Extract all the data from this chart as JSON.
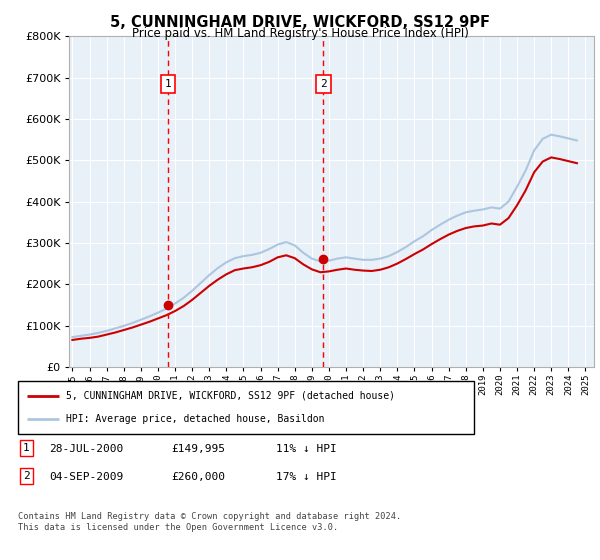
{
  "title": "5, CUNNINGHAM DRIVE, WICKFORD, SS12 9PF",
  "subtitle": "Price paid vs. HM Land Registry's House Price Index (HPI)",
  "ylim": [
    0,
    800000
  ],
  "yticks": [
    0,
    100000,
    200000,
    300000,
    400000,
    500000,
    600000,
    700000,
    800000
  ],
  "hpi_color": "#adc6e0",
  "price_color": "#cc0000",
  "bg_color": "#e8f0f8",
  "grid_color": "#ffffff",
  "purchase1_year": 2000.58,
  "purchase1_price": 149995,
  "purchase2_year": 2009.67,
  "purchase2_price": 260000,
  "legend_label1": "5, CUNNINGHAM DRIVE, WICKFORD, SS12 9PF (detached house)",
  "legend_label2": "HPI: Average price, detached house, Basildon",
  "table_row1": [
    "1",
    "28-JUL-2000",
    "£149,995",
    "11% ↓ HPI"
  ],
  "table_row2": [
    "2",
    "04-SEP-2009",
    "£260,000",
    "17% ↓ HPI"
  ],
  "footer": "Contains HM Land Registry data © Crown copyright and database right 2024.\nThis data is licensed under the Open Government Licence v3.0.",
  "hpi_data_x": [
    1995.0,
    1995.5,
    1996.0,
    1996.5,
    1997.0,
    1997.5,
    1998.0,
    1998.5,
    1999.0,
    1999.5,
    2000.0,
    2000.5,
    2001.0,
    2001.5,
    2002.0,
    2002.5,
    2003.0,
    2003.5,
    2004.0,
    2004.5,
    2005.0,
    2005.5,
    2006.0,
    2006.5,
    2007.0,
    2007.5,
    2008.0,
    2008.5,
    2009.0,
    2009.5,
    2010.0,
    2010.5,
    2011.0,
    2011.5,
    2012.0,
    2012.5,
    2013.0,
    2013.5,
    2014.0,
    2014.5,
    2015.0,
    2015.5,
    2016.0,
    2016.5,
    2017.0,
    2017.5,
    2018.0,
    2018.5,
    2019.0,
    2019.5,
    2020.0,
    2020.5,
    2021.0,
    2021.5,
    2022.0,
    2022.5,
    2023.0,
    2023.5,
    2024.0,
    2024.5
  ],
  "hpi_data_y": [
    72000,
    75000,
    78000,
    82000,
    87000,
    93000,
    99000,
    106000,
    114000,
    122000,
    131000,
    141000,
    153000,
    167000,
    184000,
    203000,
    222000,
    239000,
    253000,
    263000,
    268000,
    271000,
    276000,
    285000,
    296000,
    302000,
    294000,
    276000,
    262000,
    255000,
    257000,
    262000,
    265000,
    262000,
    259000,
    259000,
    262000,
    268000,
    278000,
    290000,
    304000,
    316000,
    331000,
    344000,
    356000,
    366000,
    374000,
    378000,
    381000,
    386000,
    383000,
    400000,
    436000,
    475000,
    524000,
    552000,
    562000,
    558000,
    553000,
    548000
  ],
  "price_data_x": [
    1995.0,
    1995.5,
    1996.0,
    1996.5,
    1997.0,
    1997.5,
    1998.0,
    1998.5,
    1999.0,
    1999.5,
    2000.0,
    2000.5,
    2001.0,
    2001.5,
    2002.0,
    2002.5,
    2003.0,
    2003.5,
    2004.0,
    2004.5,
    2005.0,
    2005.5,
    2006.0,
    2006.5,
    2007.0,
    2007.5,
    2008.0,
    2008.5,
    2009.0,
    2009.5,
    2010.0,
    2010.5,
    2011.0,
    2011.5,
    2012.0,
    2012.5,
    2013.0,
    2013.5,
    2014.0,
    2014.5,
    2015.0,
    2015.5,
    2016.0,
    2016.5,
    2017.0,
    2017.5,
    2018.0,
    2018.5,
    2019.0,
    2019.5,
    2020.0,
    2020.5,
    2021.0,
    2021.5,
    2022.0,
    2022.5,
    2023.0,
    2023.5,
    2024.0,
    2024.5
  ],
  "price_data_y": [
    65000,
    68000,
    70000,
    73000,
    78000,
    83000,
    89000,
    95000,
    102000,
    109000,
    117000,
    125000,
    135000,
    147000,
    162000,
    179000,
    196000,
    211000,
    224000,
    234000,
    238000,
    241000,
    246000,
    254000,
    265000,
    270000,
    263000,
    248000,
    236000,
    229000,
    231000,
    235000,
    238000,
    235000,
    233000,
    232000,
    235000,
    241000,
    250000,
    261000,
    273000,
    284000,
    297000,
    309000,
    320000,
    329000,
    336000,
    340000,
    342000,
    347000,
    344000,
    360000,
    391000,
    427000,
    471000,
    497000,
    507000,
    503000,
    498000,
    493000
  ]
}
